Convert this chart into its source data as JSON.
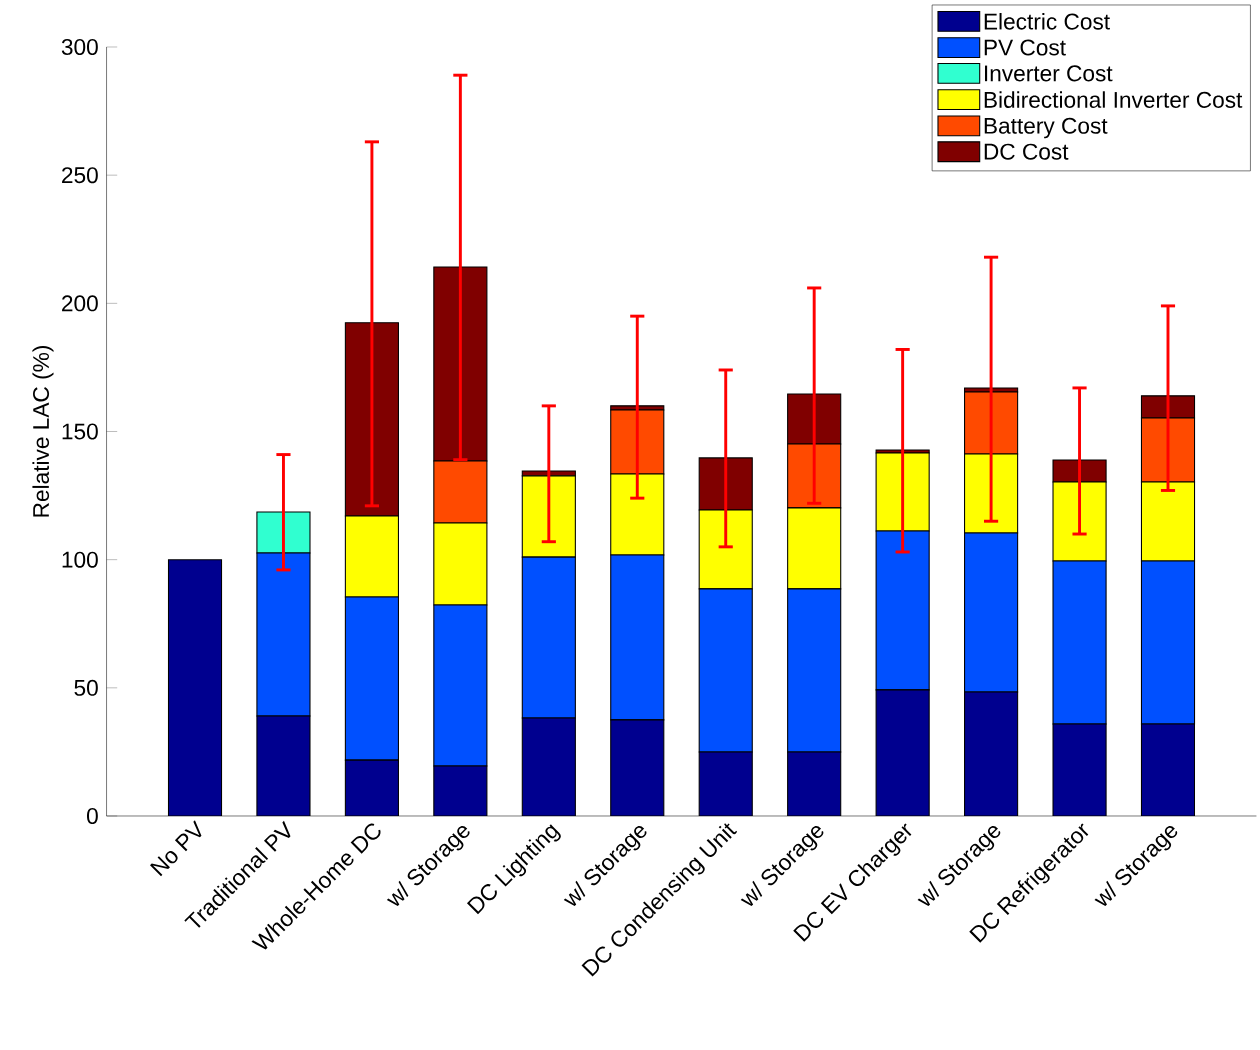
{
  "chart_data": {
    "type": "bar",
    "stacked": true,
    "ylabel": "Relative LAC (%)",
    "categories": [
      "No PV",
      "Traditional PV",
      "Whole-Home DC",
      "w/ Storage",
      "DC Lighting",
      "w/ Storage",
      "DC Condensing Unit",
      "w/ Storage",
      "DC EV Charger",
      "w/ Storage",
      "DC Refrigerator",
      "w/ Storage"
    ],
    "series": [
      {
        "name": "Electric Cost",
        "color": "#00008f",
        "values": [
          100,
          39,
          21.8,
          19.5,
          38.2,
          37.5,
          25,
          25,
          49.2,
          48.4,
          35.9,
          35.9
        ]
      },
      {
        "name": "PV Cost",
        "color": "#0050ff",
        "values": [
          0,
          63.6,
          63.6,
          62.8,
          62.8,
          64.3,
          63.6,
          63.6,
          62,
          62,
          63.6,
          63.6
        ]
      },
      {
        "name": "Inverter Cost",
        "color": "#30ffd0",
        "values": [
          0,
          16,
          0,
          0,
          0,
          0,
          0,
          0,
          0,
          0,
          0,
          0
        ]
      },
      {
        "name": "Bidirectional Inverter Cost",
        "color": "#ffff00",
        "values": [
          0,
          0,
          31.6,
          32,
          31.7,
          31.6,
          30.8,
          31.6,
          30.4,
          30.8,
          30.8,
          30.8
        ]
      },
      {
        "name": "Battery Cost",
        "color": "#ff4a00",
        "values": [
          0,
          0,
          0,
          24.2,
          0,
          25,
          0,
          24.9,
          0,
          24.2,
          0,
          25
        ]
      },
      {
        "name": "DC Cost",
        "color": "#800000",
        "values": [
          0,
          0,
          75.4,
          75.7,
          1.9,
          1.6,
          20.3,
          19.5,
          1.2,
          1.6,
          8.6,
          8.6
        ],
        "errors": [
          null,
          [
            96,
            141
          ],
          [
            121,
            263
          ],
          [
            139,
            289
          ],
          [
            107,
            160
          ],
          [
            124,
            195
          ],
          [
            105,
            174
          ],
          [
            122,
            206
          ],
          [
            103,
            182
          ],
          [
            115,
            218
          ],
          [
            110,
            167
          ],
          [
            127,
            199
          ]
        ]
      }
    ],
    "ylim": [
      0,
      300
    ],
    "yticks": [
      0,
      50,
      100,
      150,
      200,
      250,
      300
    ],
    "legend": "top right"
  }
}
